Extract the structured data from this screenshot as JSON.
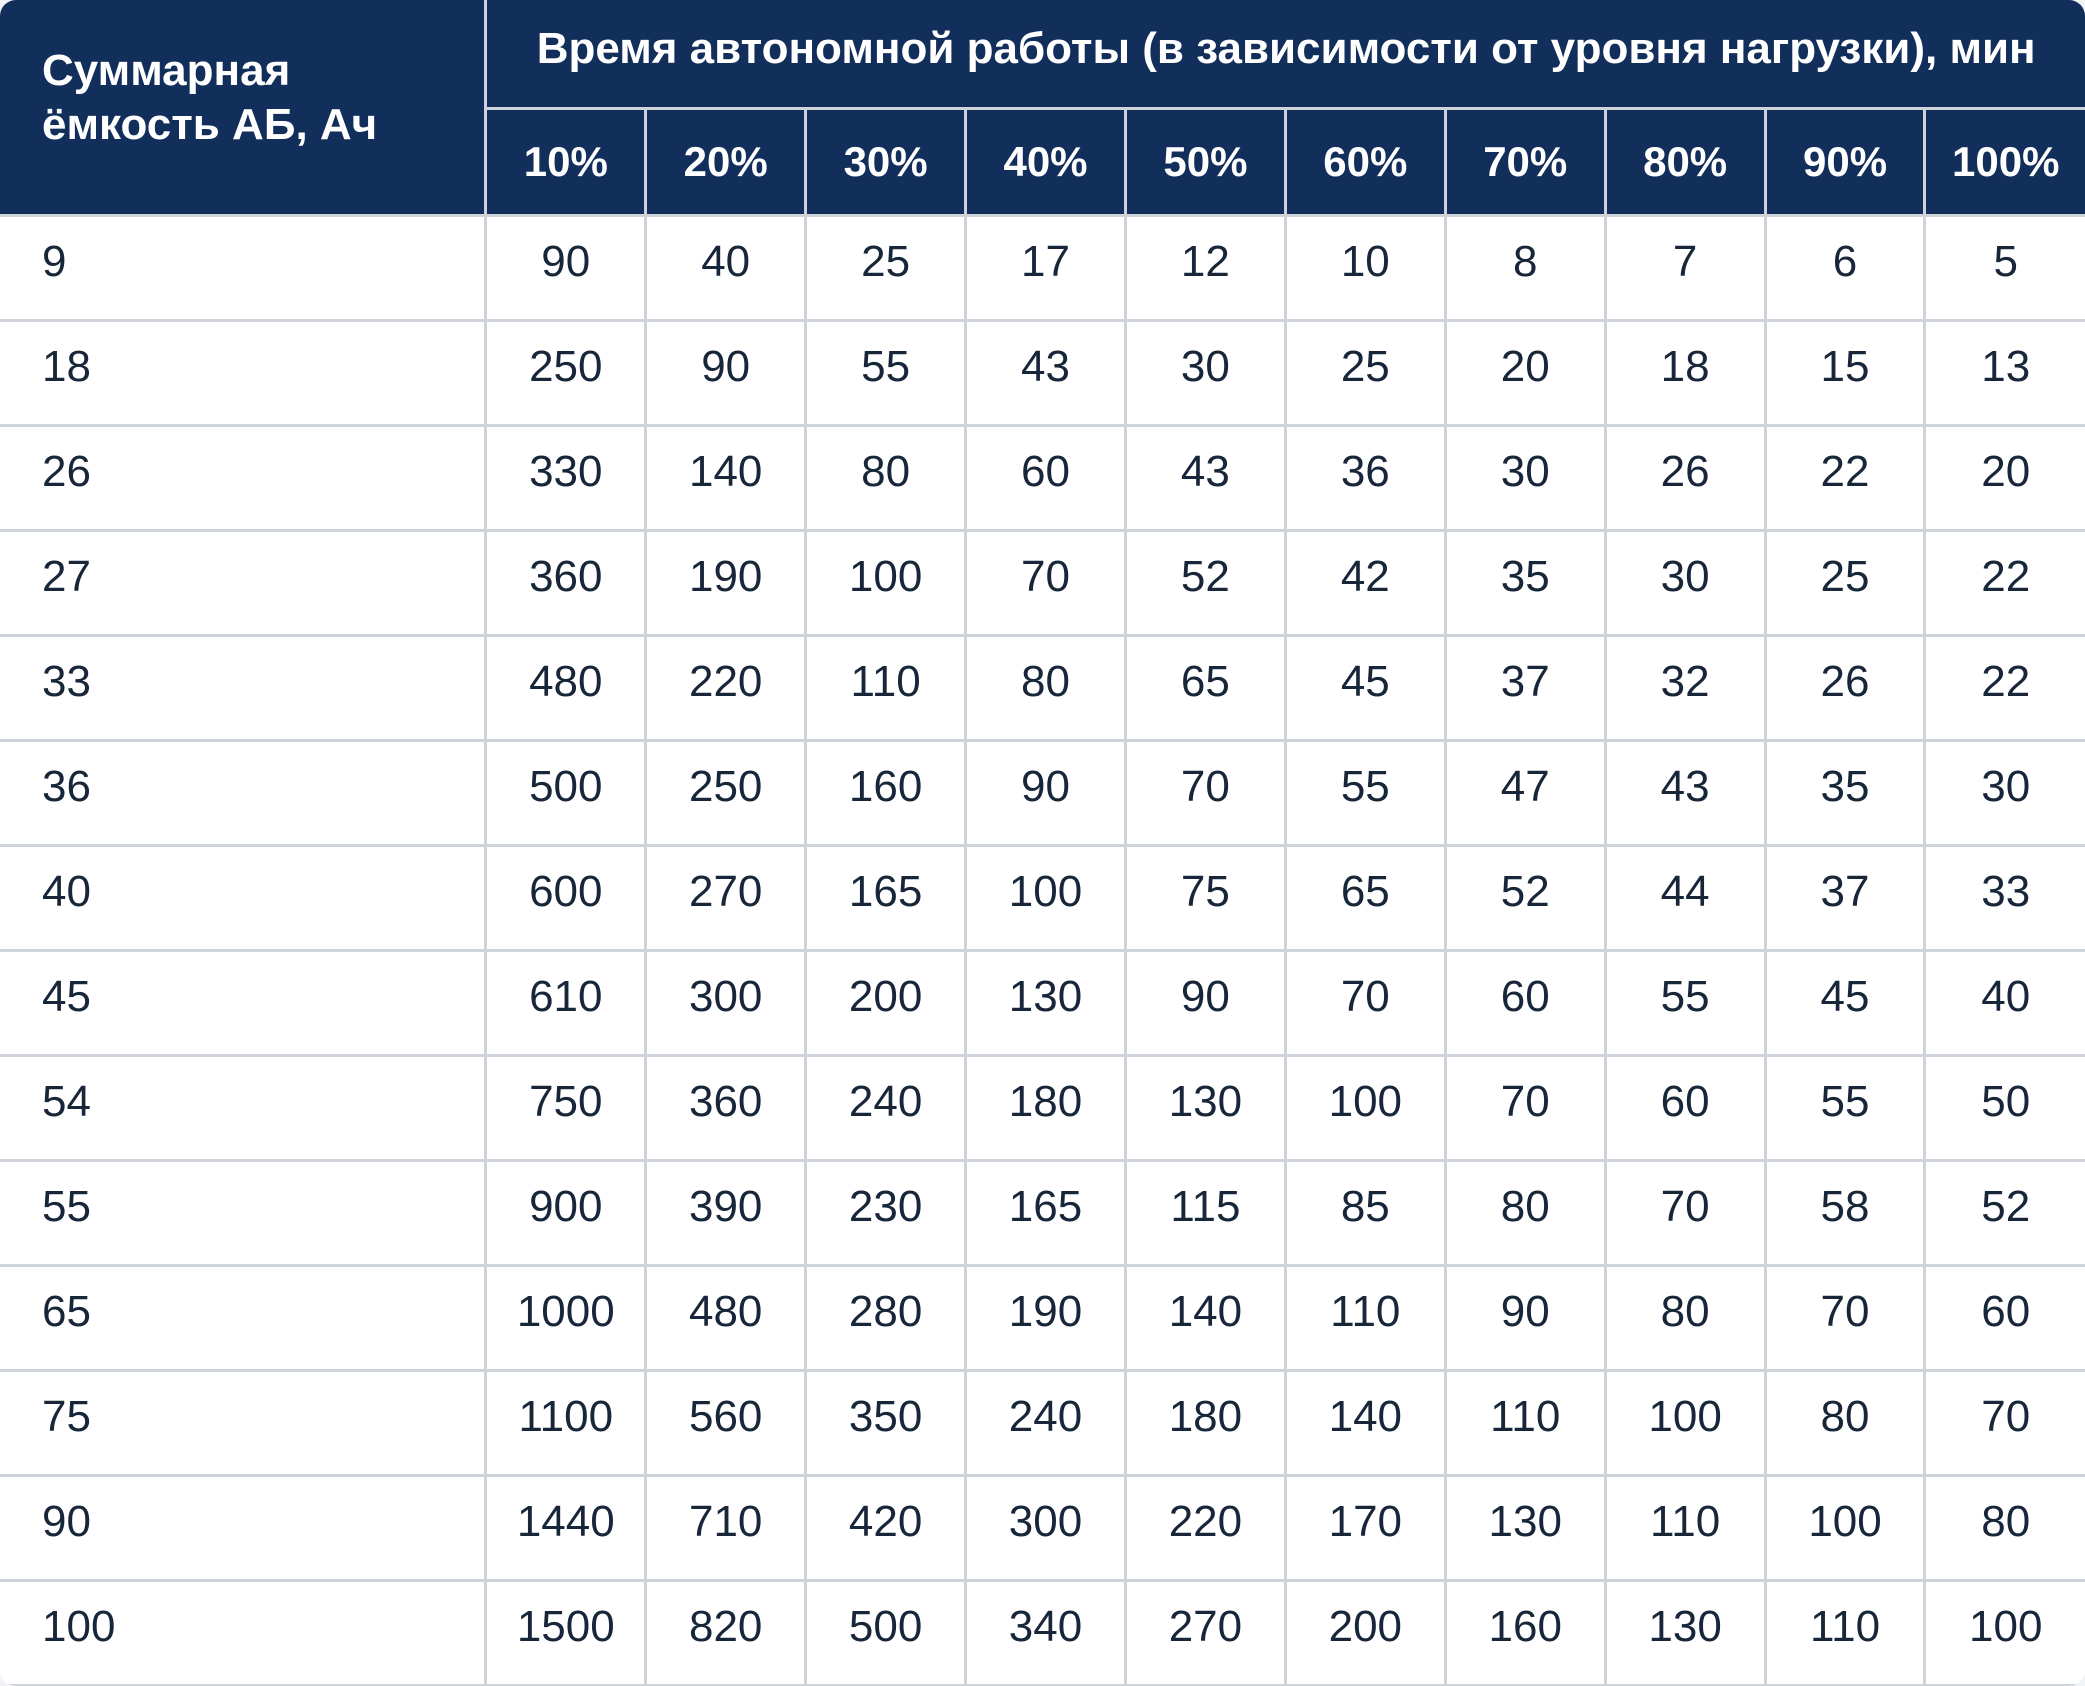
{
  "colors": {
    "header_bg": "#122F5B",
    "header_text": "#FFFFFF",
    "cell_bg": "#FFFFFF",
    "cell_text": "#182639",
    "divider": "#CFD4DA",
    "page_bg": "#F2F3F5"
  },
  "chart_data": {
    "type": "table",
    "title": "Время автономной работы (в зависимости от уровня нагрузки), мин",
    "capacity_header": "Суммарная ёмкость АБ, Ач",
    "autonomy_header": "Время автономной работы (в зависимости от уровня нагрузки), мин",
    "columns": [
      "10%",
      "20%",
      "30%",
      "40%",
      "50%",
      "60%",
      "70%",
      "80%",
      "90%",
      "100%"
    ],
    "rows": [
      {
        "capacity": "9",
        "values": [
          "90",
          "40",
          "25",
          "17",
          "12",
          "10",
          "8",
          "7",
          "6",
          "5"
        ]
      },
      {
        "capacity": "18",
        "values": [
          "250",
          "90",
          "55",
          "43",
          "30",
          "25",
          "20",
          "18",
          "15",
          "13"
        ]
      },
      {
        "capacity": "26",
        "values": [
          "330",
          "140",
          "80",
          "60",
          "43",
          "36",
          "30",
          "26",
          "22",
          "20"
        ]
      },
      {
        "capacity": "27",
        "values": [
          "360",
          "190",
          "100",
          "70",
          "52",
          "42",
          "35",
          "30",
          "25",
          "22"
        ]
      },
      {
        "capacity": "33",
        "values": [
          "480",
          "220",
          "110",
          "80",
          "65",
          "45",
          "37",
          "32",
          "26",
          "22"
        ]
      },
      {
        "capacity": "36",
        "values": [
          "500",
          "250",
          "160",
          "90",
          "70",
          "55",
          "47",
          "43",
          "35",
          "30"
        ]
      },
      {
        "capacity": "40",
        "values": [
          "600",
          "270",
          "165",
          "100",
          "75",
          "65",
          "52",
          "44",
          "37",
          "33"
        ]
      },
      {
        "capacity": "45",
        "values": [
          "610",
          "300",
          "200",
          "130",
          "90",
          "70",
          "60",
          "55",
          "45",
          "40"
        ]
      },
      {
        "capacity": "54",
        "values": [
          "750",
          "360",
          "240",
          "180",
          "130",
          "100",
          "70",
          "60",
          "55",
          "50"
        ]
      },
      {
        "capacity": "55",
        "values": [
          "900",
          "390",
          "230",
          "165",
          "115",
          "85",
          "80",
          "70",
          "58",
          "52"
        ]
      },
      {
        "capacity": "65",
        "values": [
          "1000",
          "480",
          "280",
          "190",
          "140",
          "110",
          "90",
          "80",
          "70",
          "60"
        ]
      },
      {
        "capacity": "75",
        "values": [
          "1100",
          "560",
          "350",
          "240",
          "180",
          "140",
          "110",
          "100",
          "80",
          "70"
        ]
      },
      {
        "capacity": "90",
        "values": [
          "1440",
          "710",
          "420",
          "300",
          "220",
          "170",
          "130",
          "110",
          "100",
          "80"
        ]
      },
      {
        "capacity": "100",
        "values": [
          "1500",
          "820",
          "500",
          "340",
          "270",
          "200",
          "160",
          "130",
          "110",
          "100"
        ]
      }
    ]
  }
}
